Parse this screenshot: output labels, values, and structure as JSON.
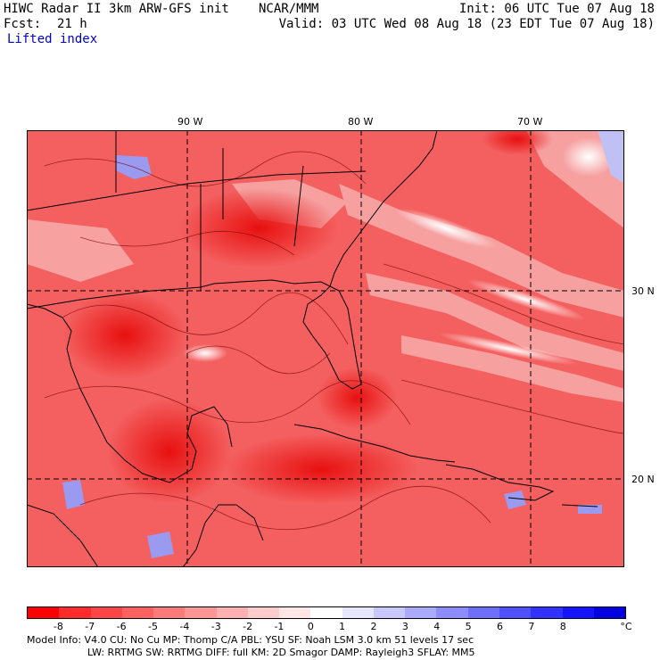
{
  "header": {
    "model_title": "HIWC Radar II 3km ARW-GFS init",
    "org": "NCAR/MMM",
    "init": "Init: 06 UTC Tue 07 Aug 18",
    "fcst_label": "Fcst:",
    "fcst_value": "21 h",
    "valid": "Valid: 03 UTC Wed 08 Aug 18 (23 EDT Tue 07 Aug 18)",
    "field": "Lifted index"
  },
  "map": {
    "lon_labels": [
      "90 W",
      "80 W",
      "70 W"
    ],
    "lat_labels": [
      "30 N",
      "20 N"
    ],
    "colors": {
      "strong_negative": "#ee1111",
      "moderate_negative": "#f46060",
      "weak_negative": "#f7a8a8",
      "neutral": "#ffffff",
      "positive": "#8c8cf0",
      "coastline": "#000000",
      "contour": "#7a0000"
    }
  },
  "colorbar": {
    "colors": [
      "#ff0000",
      "#ff2a2a",
      "#ff4545",
      "#ff6060",
      "#ff7b7b",
      "#ff9696",
      "#ffb1b1",
      "#ffcccc",
      "#ffe6e6",
      "#ffffff",
      "#e6e6ff",
      "#c8c8ff",
      "#aaaaff",
      "#8c8cff",
      "#6e6eff",
      "#5050ff",
      "#3232ff",
      "#1414ff",
      "#0000e0"
    ],
    "ticks": [
      "-8",
      "-7",
      "-6",
      "-5",
      "-4",
      "-3",
      "-2",
      "-1",
      "0",
      "1",
      "2",
      "3",
      "4",
      "5",
      "6",
      "7",
      "8"
    ],
    "unit": "°C"
  },
  "footer": {
    "line1": "Model Info: V4.0     CU: No Cu    MP: Thomp C/A    PBL: YSU      SF: Noah LSM     3.0 km  51 levels  17 sec",
    "line2": "LW: RRTMG    SW: RRTMG   DIFF: full    KM: 2D Smagor DAMP: Rayleigh3  SFLAY: MM5"
  }
}
